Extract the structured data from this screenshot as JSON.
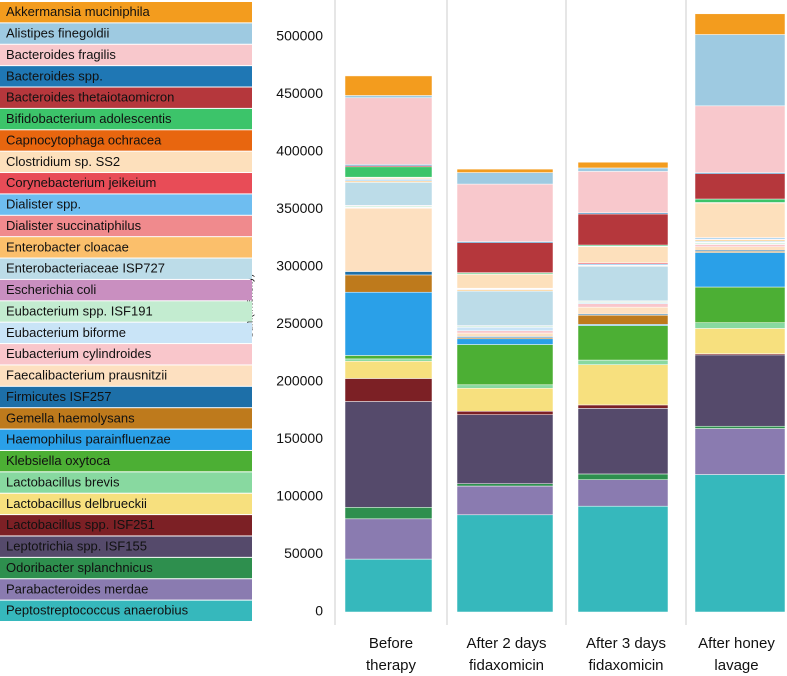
{
  "chart_data": {
    "type": "stacked_bar",
    "y_label": "Sum(Intensity)",
    "categories": [
      [
        "Before",
        "therapy"
      ],
      [
        "After 2 days",
        "fidaxomicin"
      ],
      [
        "After 3 days",
        "fidaxomicin"
      ],
      [
        "After honey",
        "lavage"
      ]
    ],
    "ylim": [
      0,
      532000
    ],
    "yticks": [
      0,
      50000,
      100000,
      150000,
      200000,
      250000,
      300000,
      350000,
      400000,
      450000,
      500000
    ],
    "series": [
      {
        "name": "Akkermansia muciniphila",
        "color": "#f39c1e",
        "values": [
          17000,
          3000,
          5000,
          18000
        ]
      },
      {
        "name": "Alistipes finegoldii",
        "color": "#9ecae1",
        "values": [
          2000,
          10000,
          3000,
          62000
        ]
      },
      {
        "name": "Bacteroides fragilis",
        "color": "#f8c8cc",
        "values": [
          58000,
          50000,
          36000,
          58000
        ]
      },
      {
        "name": "Bacteroides spp.",
        "color": "#1f77b4",
        "values": [
          1000,
          1000,
          1000,
          1000
        ]
      },
      {
        "name": "Bacteroides thetaiotaomicron",
        "color": "#b5373c",
        "values": [
          1000,
          26000,
          27000,
          22000
        ]
      },
      {
        "name": "Bifidobacterium adolescentis",
        "color": "#3cc46a",
        "values": [
          9000,
          1000,
          1000,
          3000
        ]
      },
      {
        "name": "Capnocytophaga ochracea",
        "color": "#e8660f",
        "values": [
          500,
          500,
          500,
          500
        ]
      },
      {
        "name": "Clostridium sp. SS2",
        "color": "#fde0bc",
        "values": [
          1000,
          12000,
          14000,
          30000
        ]
      },
      {
        "name": "Corynebacterium jeikeium",
        "color": "#e84c57",
        "values": [
          500,
          500,
          1000,
          500
        ]
      },
      {
        "name": "Dialister spp.",
        "color": "#6ebdf0",
        "values": [
          1000,
          500,
          1000,
          1000
        ]
      },
      {
        "name": "Dialister succinatiphilus",
        "color": "#f08a8d",
        "values": [
          500,
          500,
          500,
          500
        ]
      },
      {
        "name": "Enterobacter cloacae",
        "color": "#fbbf6b",
        "values": [
          1000,
          1000,
          500,
          1000
        ]
      },
      {
        "name": "Enterobacteriaceae ISP727",
        "color": "#bcdce8",
        "values": [
          20000,
          30000,
          30000,
          1000
        ]
      },
      {
        "name": "Escherichia coli",
        "color": "#c98fc0",
        "values": [
          500,
          500,
          500,
          500
        ]
      },
      {
        "name": "Eubacterium  spp. ISF191",
        "color": "#c3ecd0",
        "values": [
          1000,
          1000,
          1000,
          1000
        ]
      },
      {
        "name": "Eubacterium biforme",
        "color": "#c9e4f7",
        "values": [
          500,
          3000,
          1000,
          500
        ]
      },
      {
        "name": "Eubacterium cylindroides",
        "color": "#f9c6cb",
        "values": [
          500,
          2000,
          3000,
          2000
        ]
      },
      {
        "name": "Faecalibacterium prausnitzii",
        "color": "#fde0c0",
        "values": [
          55000,
          3000,
          6000,
          3000
        ]
      },
      {
        "name": "Firmicutes ISF257",
        "color": "#1d6fa8",
        "values": [
          3000,
          1000,
          1000,
          1000
        ]
      },
      {
        "name": "Gemella haemolysans",
        "color": "#be7a1c",
        "values": [
          15000,
          1000,
          8000,
          1000
        ]
      },
      {
        "name": "Haemophilus parainfluenzae",
        "color": "#2aa0e8",
        "values": [
          55000,
          5000,
          1000,
          30000
        ]
      },
      {
        "name": "Klebsiella oxytoca",
        "color": "#4caf34",
        "values": [
          3000,
          35000,
          30000,
          31000
        ]
      },
      {
        "name": "Lactobacillus brevis",
        "color": "#88d9a0",
        "values": [
          2000,
          3000,
          4000,
          5000
        ]
      },
      {
        "name": "Lactobacillus delbrueckii",
        "color": "#f7e07e",
        "values": [
          15000,
          20000,
          35000,
          22000
        ]
      },
      {
        "name": "Lactobacillus spp. ISF251",
        "color": "#7c2025",
        "values": [
          20000,
          3000,
          3000,
          1000
        ]
      },
      {
        "name": "Leptotrichia spp. ISF155",
        "color": "#554a6b",
        "values": [
          92000,
          60000,
          57000,
          62000
        ]
      },
      {
        "name": "Odoribacter splanchnicus",
        "color": "#2e8f4e",
        "values": [
          10000,
          2000,
          5000,
          2000
        ]
      },
      {
        "name": "Parabacteroides merdae",
        "color": "#8a7bb0",
        "values": [
          35000,
          25000,
          23000,
          40000
        ]
      },
      {
        "name": "Peptostreptococcus anaerobius",
        "color": "#36b8bc",
        "values": [
          46000,
          84500,
          92000,
          119500
        ]
      }
    ]
  }
}
